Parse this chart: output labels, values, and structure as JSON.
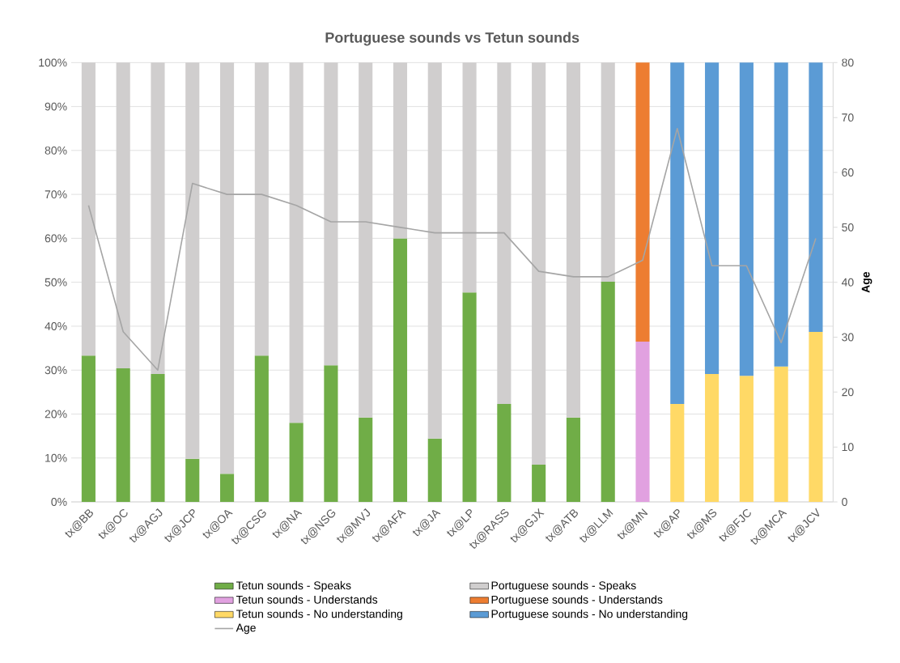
{
  "chart_data": {
    "type": "bar",
    "title": "Portuguese sounds vs Tetun sounds",
    "stacked": true,
    "categories": [
      "tx@BB",
      "tx@OC",
      "tx@AGJ",
      "tx@JCP",
      "tx@OA",
      "tx@CSG",
      "tx@NA",
      "tx@NSG",
      "tx@MVJ",
      "tx@AFA",
      "tx@JA",
      "tx@LP",
      "tx@RASS",
      "tx@GJX",
      "tx@ATB",
      "tx@LLM",
      "tx@MN",
      "tx@AP",
      "tx@MS",
      "tx@FJC",
      "tx@MCA",
      "tx@JCV"
    ],
    "series": [
      {
        "name": "Tetun sounds - Speaks",
        "color": "#70ad47",
        "values": [
          33.3,
          30.4,
          29.1,
          9.8,
          6.4,
          33.3,
          18.0,
          31.1,
          19.2,
          60.0,
          14.4,
          47.7,
          22.3,
          8.5,
          19.2,
          50.1,
          null,
          null,
          null,
          null,
          null,
          null
        ]
      },
      {
        "name": "Portuguese sounds - Speaks",
        "color": "#d0cece",
        "values": [
          66.7,
          69.6,
          70.9,
          90.2,
          93.6,
          66.7,
          82.0,
          68.9,
          80.8,
          40.0,
          85.6,
          52.3,
          77.7,
          91.5,
          80.8,
          49.9,
          null,
          null,
          null,
          null,
          null,
          null
        ]
      },
      {
        "name": "Tetun sounds - Understands",
        "color": "#e1a1e0",
        "values": [
          null,
          null,
          null,
          null,
          null,
          null,
          null,
          null,
          null,
          null,
          null,
          null,
          null,
          null,
          null,
          null,
          36.5,
          null,
          null,
          null,
          null,
          null
        ]
      },
      {
        "name": "Portuguese sounds - Understands",
        "color": "#ed7d31",
        "values": [
          null,
          null,
          null,
          null,
          null,
          null,
          null,
          null,
          null,
          null,
          null,
          null,
          null,
          null,
          null,
          null,
          63.5,
          null,
          null,
          null,
          null,
          null
        ]
      },
      {
        "name": "Tetun sounds - No understanding",
        "color": "#ffd966",
        "values": [
          null,
          null,
          null,
          null,
          null,
          null,
          null,
          null,
          null,
          null,
          null,
          null,
          null,
          null,
          null,
          null,
          null,
          22.3,
          29.1,
          28.7,
          30.8,
          38.7
        ]
      },
      {
        "name": "Portuguese sounds - No understanding",
        "color": "#5b9bd5",
        "values": [
          null,
          null,
          null,
          null,
          null,
          null,
          null,
          null,
          null,
          null,
          null,
          null,
          null,
          null,
          null,
          null,
          null,
          77.7,
          70.9,
          71.3,
          69.2,
          61.3
        ]
      },
      {
        "name": "Age",
        "type": "line",
        "axis": "y2",
        "color": "#a5a5a5",
        "values": [
          54,
          31,
          24,
          58,
          56,
          56,
          54,
          51,
          51,
          50,
          49,
          49,
          49,
          42,
          41,
          41,
          44,
          68,
          43,
          43,
          29,
          48
        ]
      }
    ],
    "ylim": [
      0,
      100
    ],
    "yticks": [
      {
        "value": 0,
        "label": "0%"
      },
      {
        "value": 10,
        "label": "10%"
      },
      {
        "value": 20,
        "label": "20%"
      },
      {
        "value": 30,
        "label": "30%"
      },
      {
        "value": 40,
        "label": "40%"
      },
      {
        "value": 50,
        "label": "50%"
      },
      {
        "value": 60,
        "label": "60%"
      },
      {
        "value": 70,
        "label": "70%"
      },
      {
        "value": 80,
        "label": "80%"
      },
      {
        "value": 90,
        "label": "90%"
      },
      {
        "value": 100,
        "label": "100%"
      }
    ],
    "y2lim": [
      0,
      80
    ],
    "y2ticks": [
      0,
      10,
      20,
      30,
      40,
      50,
      60,
      70,
      80
    ],
    "y2label": "Age",
    "grid": "y",
    "legend": "bottom"
  }
}
